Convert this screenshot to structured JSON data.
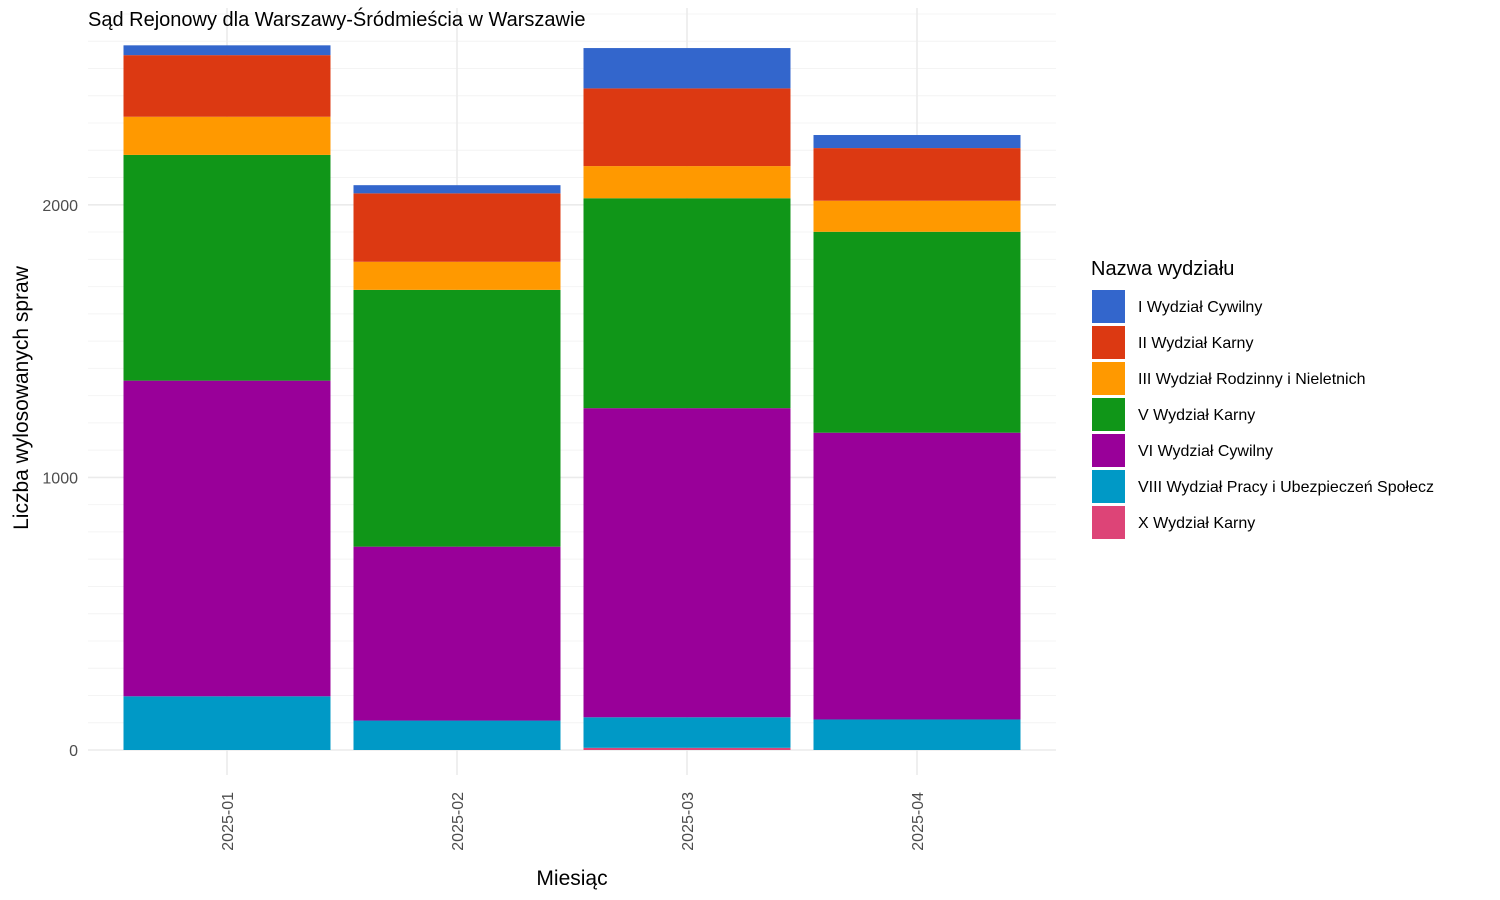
{
  "chart_data": {
    "type": "bar",
    "stacked": true,
    "title": "Sąd Rejonowy dla Warszawy-Śródmieścia w Warszawie",
    "xlabel": "Miesiąc",
    "ylabel": "Liczba wylosowanych spraw",
    "categories": [
      "2025-01",
      "2025-02",
      "2025-03",
      "2025-04"
    ],
    "ylim": [
      0,
      2700
    ],
    "y_ticks": [
      0,
      1000,
      2000
    ],
    "y_tick_labels": [
      "0",
      "1000",
      "2000"
    ],
    "grid": true,
    "legend": {
      "title": "Nazwa wydziału",
      "position": "right"
    },
    "series": [
      {
        "name": "X Wydział Karny",
        "color": "#dd4477",
        "values": [
          0,
          0,
          8,
          0
        ]
      },
      {
        "name": "VIII Wydział Pracy i Ubezpieczeń Społecz",
        "color": "#0099c6",
        "values": [
          197,
          108,
          112,
          112
        ]
      },
      {
        "name": "VI Wydział Cywilny",
        "color": "#990099",
        "values": [
          1158,
          638,
          1134,
          1052
        ]
      },
      {
        "name": "V Wydział Karny",
        "color": "#109618",
        "values": [
          828,
          942,
          770,
          737
        ]
      },
      {
        "name": "III Wydział Rodzinny i Nieletnich",
        "color": "#ff9900",
        "values": [
          140,
          103,
          118,
          114
        ]
      },
      {
        "name": "II Wydział Karny",
        "color": "#dc3912",
        "values": [
          226,
          251,
          285,
          193
        ]
      },
      {
        "name": "I Wydział Cywilny",
        "color": "#3366cc",
        "values": [
          36,
          30,
          148,
          48
        ]
      }
    ],
    "legend_order": [
      "I Wydział Cywilny",
      "II Wydział Karny",
      "III Wydział Rodzinny i Nieletnich",
      "V Wydział Karny",
      "VI Wydział Cywilny",
      "VIII Wydział Pracy i Ubezpieczeń Społecz",
      "X Wydział Karny"
    ]
  }
}
